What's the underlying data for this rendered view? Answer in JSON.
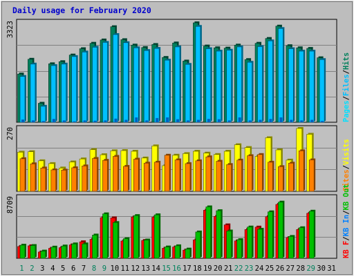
{
  "chart_data": [
    {
      "type": "bar",
      "panel": "hits-files-pages",
      "title": "Daily usage for February 2020",
      "ymax_label": "3323",
      "ylim": [
        0,
        3323
      ],
      "categories": [
        "1",
        "2",
        "3",
        "4",
        "5",
        "6",
        "7",
        "8",
        "9",
        "10",
        "11",
        "12",
        "13",
        "14",
        "15",
        "16",
        "17",
        "18",
        "19",
        "20",
        "21",
        "22",
        "23",
        "24",
        "25",
        "26",
        "27",
        "28",
        "29",
        "30",
        "31"
      ],
      "series": [
        {
          "name": "Hits",
          "values": [
            1600,
            2090,
            630,
            1940,
            2010,
            2230,
            2440,
            2620,
            2730,
            3170,
            2740,
            2560,
            2480,
            2580,
            2150,
            2630,
            2030,
            3300,
            2530,
            2470,
            2460,
            2560,
            2080,
            2620,
            2780,
            3190,
            2540,
            2470,
            2450,
            2140,
            0
          ]
        },
        {
          "name": "Files",
          "values": [
            1520,
            1930,
            530,
            1880,
            1930,
            2180,
            2330,
            2490,
            2650,
            2910,
            2640,
            2470,
            2380,
            2450,
            2060,
            2500,
            1920,
            3180,
            2440,
            2360,
            2390,
            2500,
            1990,
            2510,
            2700,
            3110,
            2440,
            2360,
            2360,
            2080,
            0
          ]
        },
        {
          "name": "Pages",
          "values": [
            90,
            60,
            40,
            110,
            60,
            30,
            60,
            50,
            60,
            120,
            80,
            160,
            60,
            140,
            160,
            100,
            60,
            80,
            110,
            100,
            60,
            160,
            60,
            80,
            110,
            160,
            80,
            60,
            80,
            40,
            0
          ]
        }
      ],
      "legend": [
        "Pages",
        "/",
        "Files",
        "/",
        "Hits"
      ]
    },
    {
      "type": "bar",
      "panel": "visits-sites",
      "ymax_label": "270",
      "ylim": [
        0,
        270
      ],
      "series": [
        {
          "name": "Visits",
          "values": [
            168,
            170,
            131,
            119,
            100,
            126,
            139,
            179,
            157,
            174,
            175,
            172,
            143,
            195,
            110,
            155,
            162,
            172,
            164,
            158,
            172,
            200,
            188,
            150,
            230,
            178,
            134,
            270,
            245,
            0,
            0
          ]
        },
        {
          "name": "Sites",
          "values": [
            140,
            118,
            100,
            92,
            91,
            101,
            109,
            141,
            133,
            150,
            107,
            138,
            121,
            125,
            155,
            135,
            119,
            131,
            148,
            129,
            115,
            134,
            153,
            158,
            125,
            106,
            121,
            174,
            135,
            0,
            0
          ]
        }
      ],
      "legend": [
        "Sites",
        "/",
        "Visits"
      ]
    },
    {
      "type": "bar",
      "panel": "kbytes",
      "ymax_label": "8709",
      "ylim": [
        0,
        8709
      ],
      "series": [
        {
          "name": "KB F",
          "values": [
            1690,
            1790,
            900,
            1430,
            1520,
            1920,
            2360,
            2720,
            5820,
            5790,
            2480,
            5910,
            2550,
            5890,
            1440,
            1620,
            1170,
            2630,
            6890,
            6000,
            4790,
            2490,
            4120,
            4470,
            5950,
            7720,
            2950,
            4120,
            6450,
            0,
            0
          ]
        },
        {
          "name": "KB In",
          "values": [
            0,
            0,
            0,
            0,
            0,
            0,
            0,
            0,
            0,
            0,
            0,
            0,
            0,
            0,
            0,
            0,
            0,
            0,
            0,
            0,
            0,
            0,
            0,
            0,
            0,
            0,
            0,
            0,
            0,
            0,
            0
          ]
        },
        {
          "name": "KB Out",
          "values": [
            1880,
            1830,
            1030,
            1600,
            1760,
            2060,
            2060,
            3330,
            6370,
            5120,
            2810,
            6120,
            2620,
            6230,
            1620,
            1790,
            1320,
            3770,
            7370,
            6820,
            3910,
            2670,
            4480,
            4160,
            6660,
            8050,
            3130,
            4380,
            6750,
            0,
            0
          ]
        }
      ],
      "legend": [
        "KB F",
        "/",
        "KB In",
        "/",
        "KB Out"
      ]
    }
  ],
  "x_labels": [
    {
      "text": "1",
      "weekend": true
    },
    {
      "text": "2",
      "weekend": true
    },
    {
      "text": "3",
      "weekend": false
    },
    {
      "text": "4",
      "weekend": false
    },
    {
      "text": "5",
      "weekend": false
    },
    {
      "text": "6",
      "weekend": false
    },
    {
      "text": "7",
      "weekend": false
    },
    {
      "text": "8",
      "weekend": true
    },
    {
      "text": "9",
      "weekend": true
    },
    {
      "text": "10",
      "weekend": false
    },
    {
      "text": "11",
      "weekend": false
    },
    {
      "text": "12",
      "weekend": false
    },
    {
      "text": "13",
      "weekend": false
    },
    {
      "text": "14",
      "weekend": false
    },
    {
      "text": "15",
      "weekend": true
    },
    {
      "text": "16",
      "weekend": true
    },
    {
      "text": "17",
      "weekend": false
    },
    {
      "text": "18",
      "weekend": false
    },
    {
      "text": "19",
      "weekend": false
    },
    {
      "text": "20",
      "weekend": false
    },
    {
      "text": "21",
      "weekend": false
    },
    {
      "text": "22",
      "weekend": true
    },
    {
      "text": "23",
      "weekend": true
    },
    {
      "text": "24",
      "weekend": false
    },
    {
      "text": "25",
      "weekend": false
    },
    {
      "text": "26",
      "weekend": false
    },
    {
      "text": "27",
      "weekend": false
    },
    {
      "text": "28",
      "weekend": false
    },
    {
      "text": "29",
      "weekend": true
    },
    {
      "text": "30",
      "weekend": false
    },
    {
      "text": "31",
      "weekend": false
    }
  ],
  "colors": {
    "title": "#0000cc",
    "hits": "#00805c",
    "files": "#00c0ff",
    "pages": "#00e0ff",
    "visits": "#ffff00",
    "sites": "#ff8000",
    "kb_f": "#ff0000",
    "kb_in": "#0080ff",
    "kb_out": "#00c000",
    "weekday_label": "#000000",
    "weekend_label": "#00805c",
    "plot_bg": "#c0c0c0",
    "frame_bg": "#bdbdbd"
  }
}
